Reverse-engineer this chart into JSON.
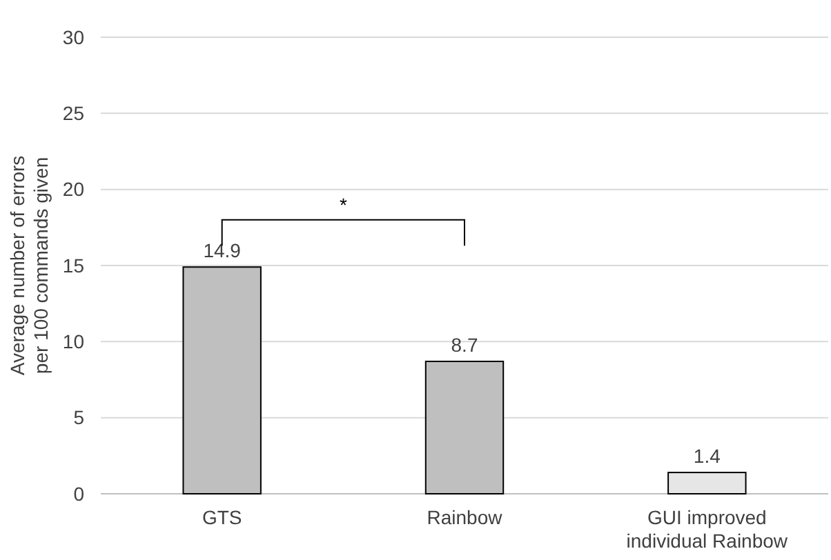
{
  "chart_data": {
    "type": "bar",
    "ylabel": "Average number of errors per 100 commands given",
    "categories": [
      "GTS",
      "Rainbow",
      "GUI improved individual Rainbow"
    ],
    "values": [
      14.9,
      8.7,
      1.4
    ],
    "colors": [
      "#bfbfbf",
      "#bfbfbf",
      "#e6e6e6"
    ],
    "ylim": [
      0,
      30
    ],
    "yticks": [
      0,
      5,
      10,
      15,
      20,
      25,
      30
    ],
    "grid": "y",
    "data_labels": true,
    "annotations": [
      "*"
    ]
  }
}
